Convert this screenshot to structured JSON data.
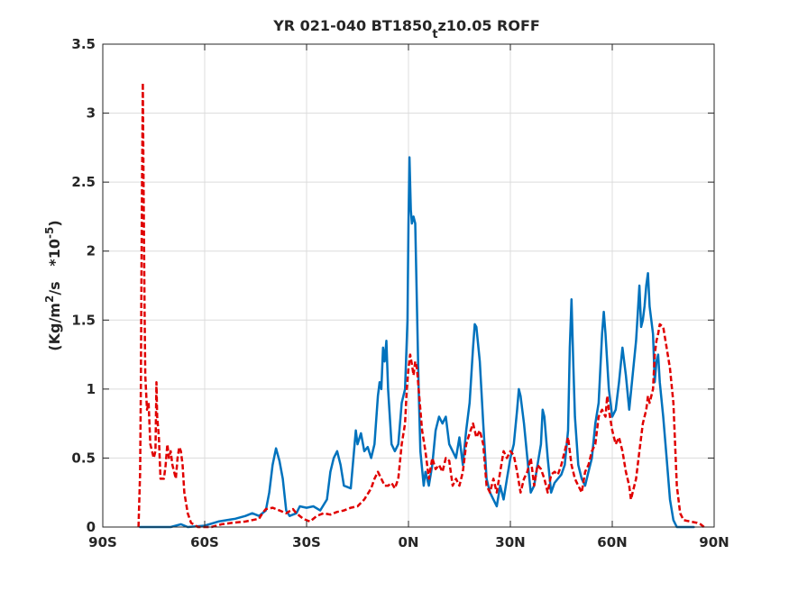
{
  "chart_data": {
    "type": "line",
    "title": {
      "pre": "YR 021-040 BT1850",
      "sub": "t",
      "post": "z10.05 ROFF"
    },
    "ylabel": {
      "a": "(Kg/m",
      "sup1": "2",
      "b": "/s   *10",
      "sup2": "-5",
      "c": ")"
    },
    "xlim": [
      -90,
      90
    ],
    "ylim": [
      0,
      3.5
    ],
    "grid": true,
    "x_ticks": [
      -90,
      -60,
      -30,
      0,
      30,
      60,
      90
    ],
    "x_tick_labels": [
      "90S",
      "60S",
      "30S",
      "0N",
      "30N",
      "60N",
      "90N"
    ],
    "y_ticks": [
      0,
      0.5,
      1,
      1.5,
      2,
      2.5,
      3,
      3.5
    ],
    "y_tick_labels": [
      "0",
      "0.5",
      "1",
      "1.5",
      "2",
      "2.5",
      "3",
      "3.5"
    ],
    "series": [
      {
        "color": "#0072BD",
        "dash": "solid",
        "points": [
          [
            -79,
            0
          ],
          [
            -70,
            0
          ],
          [
            -67,
            0.02
          ],
          [
            -65,
            0
          ],
          [
            -60,
            0.01
          ],
          [
            -56,
            0.04
          ],
          [
            -51,
            0.06
          ],
          [
            -48,
            0.08
          ],
          [
            -46,
            0.1
          ],
          [
            -44,
            0.08
          ],
          [
            -42,
            0.12
          ],
          [
            -41,
            0.25
          ],
          [
            -40,
            0.45
          ],
          [
            -39,
            0.57
          ],
          [
            -38,
            0.48
          ],
          [
            -37,
            0.35
          ],
          [
            -36,
            0.12
          ],
          [
            -35,
            0.08
          ],
          [
            -34,
            0.09
          ],
          [
            -33,
            0.1
          ],
          [
            -32,
            0.15
          ],
          [
            -30,
            0.14
          ],
          [
            -28,
            0.15
          ],
          [
            -26,
            0.12
          ],
          [
            -24,
            0.2
          ],
          [
            -23,
            0.4
          ],
          [
            -22,
            0.5
          ],
          [
            -21,
            0.55
          ],
          [
            -20,
            0.45
          ],
          [
            -19,
            0.3
          ],
          [
            -17,
            0.28
          ],
          [
            -15.5,
            0.7
          ],
          [
            -15,
            0.6
          ],
          [
            -14,
            0.68
          ],
          [
            -13,
            0.55
          ],
          [
            -12,
            0.58
          ],
          [
            -11,
            0.5
          ],
          [
            -10,
            0.6
          ],
          [
            -9,
            0.95
          ],
          [
            -8.5,
            1.05
          ],
          [
            -8,
            1.0
          ],
          [
            -7.5,
            1.3
          ],
          [
            -7,
            1.2
          ],
          [
            -6.5,
            1.35
          ],
          [
            -6,
            1.0
          ],
          [
            -5,
            0.6
          ],
          [
            -4,
            0.55
          ],
          [
            -3,
            0.6
          ],
          [
            -2,
            0.9
          ],
          [
            -1,
            1.0
          ],
          [
            -0.3,
            1.5
          ],
          [
            0,
            2.2
          ],
          [
            0.3,
            2.68
          ],
          [
            0.7,
            2.3
          ],
          [
            1,
            2.2
          ],
          [
            1.5,
            2.25
          ],
          [
            2,
            2.2
          ],
          [
            2.5,
            1.6
          ],
          [
            3,
            1.0
          ],
          [
            3.5,
            0.55
          ],
          [
            4.5,
            0.3
          ],
          [
            5,
            0.4
          ],
          [
            6,
            0.3
          ],
          [
            7,
            0.45
          ],
          [
            8,
            0.7
          ],
          [
            9,
            0.8
          ],
          [
            10,
            0.75
          ],
          [
            11,
            0.8
          ],
          [
            12,
            0.6
          ],
          [
            13,
            0.55
          ],
          [
            14,
            0.5
          ],
          [
            15,
            0.65
          ],
          [
            16,
            0.45
          ],
          [
            17,
            0.7
          ],
          [
            18,
            0.9
          ],
          [
            19,
            1.3
          ],
          [
            19.5,
            1.47
          ],
          [
            20,
            1.45
          ],
          [
            21,
            1.2
          ],
          [
            22,
            0.75
          ],
          [
            23,
            0.35
          ],
          [
            24,
            0.25
          ],
          [
            25,
            0.2
          ],
          [
            26,
            0.15
          ],
          [
            27,
            0.3
          ],
          [
            28,
            0.2
          ],
          [
            29,
            0.35
          ],
          [
            30,
            0.5
          ],
          [
            31,
            0.6
          ],
          [
            32,
            0.85
          ],
          [
            32.5,
            1.0
          ],
          [
            33,
            0.95
          ],
          [
            34,
            0.75
          ],
          [
            35,
            0.5
          ],
          [
            36,
            0.25
          ],
          [
            37,
            0.3
          ],
          [
            38,
            0.45
          ],
          [
            39,
            0.6
          ],
          [
            39.5,
            0.85
          ],
          [
            40,
            0.8
          ],
          [
            41,
            0.5
          ],
          [
            42,
            0.25
          ],
          [
            43,
            0.32
          ],
          [
            44,
            0.35
          ],
          [
            45,
            0.38
          ],
          [
            46,
            0.45
          ],
          [
            47,
            0.7
          ],
          [
            47.5,
            1.3
          ],
          [
            48,
            1.65
          ],
          [
            48.5,
            1.2
          ],
          [
            49,
            0.8
          ],
          [
            50,
            0.45
          ],
          [
            51,
            0.35
          ],
          [
            52,
            0.3
          ],
          [
            53,
            0.4
          ],
          [
            54,
            0.5
          ],
          [
            55,
            0.75
          ],
          [
            56,
            0.9
          ],
          [
            57,
            1.4
          ],
          [
            57.5,
            1.56
          ],
          [
            58,
            1.4
          ],
          [
            59,
            1.0
          ],
          [
            60,
            0.8
          ],
          [
            61,
            0.85
          ],
          [
            62,
            1.05
          ],
          [
            63,
            1.3
          ],
          [
            64,
            1.1
          ],
          [
            65,
            0.85
          ],
          [
            66,
            1.1
          ],
          [
            67,
            1.35
          ],
          [
            67.5,
            1.55
          ],
          [
            68,
            1.75
          ],
          [
            68.5,
            1.45
          ],
          [
            69,
            1.5
          ],
          [
            69.5,
            1.6
          ],
          [
            70,
            1.75
          ],
          [
            70.5,
            1.84
          ],
          [
            71,
            1.6
          ],
          [
            72,
            1.4
          ],
          [
            72.5,
            1.05
          ],
          [
            73,
            1.2
          ],
          [
            73.5,
            1.25
          ],
          [
            74,
            1.05
          ],
          [
            75,
            0.8
          ],
          [
            76,
            0.5
          ],
          [
            77,
            0.2
          ],
          [
            78,
            0.05
          ],
          [
            79,
            0
          ],
          [
            84,
            0
          ]
        ]
      },
      {
        "color": "#E00000",
        "dash": "dashed",
        "points": [
          [
            -79.5,
            0
          ],
          [
            -79,
            0.4
          ],
          [
            -78.8,
            1.0
          ],
          [
            -78.5,
            2.3
          ],
          [
            -78.2,
            3.22
          ],
          [
            -78,
            2.5
          ],
          [
            -77.7,
            1.6
          ],
          [
            -77.5,
            1.1
          ],
          [
            -77,
            0.85
          ],
          [
            -76.5,
            0.9
          ],
          [
            -76,
            0.6
          ],
          [
            -75.5,
            0.55
          ],
          [
            -75,
            0.5
          ],
          [
            -74.5,
            0.55
          ],
          [
            -74.2,
            1.05
          ],
          [
            -74,
            0.8
          ],
          [
            -73.5,
            0.65
          ],
          [
            -73,
            0.35
          ],
          [
            -72,
            0.35
          ],
          [
            -71.5,
            0.45
          ],
          [
            -71,
            0.6
          ],
          [
            -70.5,
            0.5
          ],
          [
            -70,
            0.55
          ],
          [
            -69.5,
            0.45
          ],
          [
            -69,
            0.4
          ],
          [
            -68.5,
            0.35
          ],
          [
            -68,
            0.5
          ],
          [
            -67.5,
            0.58
          ],
          [
            -67,
            0.55
          ],
          [
            -66.5,
            0.45
          ],
          [
            -66,
            0.25
          ],
          [
            -65,
            0.1
          ],
          [
            -64,
            0.03
          ],
          [
            -62,
            0
          ],
          [
            -58,
            0
          ],
          [
            -55,
            0.02
          ],
          [
            -52,
            0.03
          ],
          [
            -48,
            0.04
          ],
          [
            -46,
            0.05
          ],
          [
            -44,
            0.06
          ],
          [
            -43,
            0.1
          ],
          [
            -42,
            0.13
          ],
          [
            -40,
            0.14
          ],
          [
            -38,
            0.12
          ],
          [
            -36,
            0.1
          ],
          [
            -34,
            0.13
          ],
          [
            -33,
            0.1
          ],
          [
            -31,
            0.06
          ],
          [
            -29,
            0.04
          ],
          [
            -27,
            0.08
          ],
          [
            -25,
            0.1
          ],
          [
            -23,
            0.09
          ],
          [
            -21,
            0.11
          ],
          [
            -19,
            0.12
          ],
          [
            -17,
            0.14
          ],
          [
            -15,
            0.15
          ],
          [
            -13,
            0.2
          ],
          [
            -11,
            0.28
          ],
          [
            -10,
            0.35
          ],
          [
            -9,
            0.4
          ],
          [
            -8,
            0.35
          ],
          [
            -7,
            0.3
          ],
          [
            -6,
            0.3
          ],
          [
            -5,
            0.32
          ],
          [
            -4,
            0.28
          ],
          [
            -3,
            0.35
          ],
          [
            -2,
            0.6
          ],
          [
            -1,
            0.75
          ],
          [
            -0.5,
            1.0
          ],
          [
            0,
            1.15
          ],
          [
            0.5,
            1.25
          ],
          [
            1,
            1.18
          ],
          [
            1.5,
            1.1
          ],
          [
            2,
            1.2
          ],
          [
            2.5,
            1.15
          ],
          [
            3,
            1.0
          ],
          [
            4,
            0.7
          ],
          [
            5,
            0.55
          ],
          [
            6,
            0.35
          ],
          [
            7,
            0.5
          ],
          [
            8,
            0.42
          ],
          [
            9,
            0.45
          ],
          [
            10,
            0.4
          ],
          [
            11,
            0.5
          ],
          [
            12,
            0.48
          ],
          [
            13,
            0.3
          ],
          [
            14,
            0.35
          ],
          [
            15,
            0.3
          ],
          [
            16,
            0.4
          ],
          [
            17,
            0.6
          ],
          [
            18,
            0.68
          ],
          [
            19,
            0.75
          ],
          [
            20,
            0.65
          ],
          [
            21,
            0.7
          ],
          [
            22,
            0.6
          ],
          [
            23,
            0.3
          ],
          [
            24,
            0.25
          ],
          [
            25,
            0.35
          ],
          [
            26,
            0.25
          ],
          [
            27,
            0.4
          ],
          [
            28,
            0.55
          ],
          [
            29,
            0.5
          ],
          [
            30,
            0.55
          ],
          [
            31,
            0.52
          ],
          [
            32,
            0.4
          ],
          [
            33,
            0.25
          ],
          [
            34,
            0.35
          ],
          [
            35,
            0.4
          ],
          [
            36,
            0.5
          ],
          [
            37,
            0.3
          ],
          [
            38,
            0.45
          ],
          [
            39,
            0.42
          ],
          [
            40,
            0.35
          ],
          [
            41,
            0.25
          ],
          [
            42,
            0.38
          ],
          [
            43,
            0.4
          ],
          [
            44,
            0.38
          ],
          [
            45,
            0.45
          ],
          [
            46,
            0.55
          ],
          [
            47,
            0.65
          ],
          [
            47.5,
            0.55
          ],
          [
            48,
            0.45
          ],
          [
            49,
            0.35
          ],
          [
            50,
            0.3
          ],
          [
            51,
            0.25
          ],
          [
            52,
            0.4
          ],
          [
            53,
            0.45
          ],
          [
            54,
            0.55
          ],
          [
            55,
            0.6
          ],
          [
            56,
            0.8
          ],
          [
            57,
            0.85
          ],
          [
            58,
            0.8
          ],
          [
            58.5,
            0.95
          ],
          [
            59,
            0.85
          ],
          [
            60,
            0.7
          ],
          [
            61,
            0.6
          ],
          [
            62,
            0.65
          ],
          [
            63,
            0.55
          ],
          [
            64,
            0.4
          ],
          [
            65,
            0.3
          ],
          [
            65.5,
            0.2
          ],
          [
            66,
            0.25
          ],
          [
            67,
            0.35
          ],
          [
            68,
            0.55
          ],
          [
            69,
            0.75
          ],
          [
            70,
            0.85
          ],
          [
            70.5,
            0.95
          ],
          [
            71,
            0.9
          ],
          [
            72,
            1.0
          ],
          [
            72.5,
            1.25
          ],
          [
            73,
            1.35
          ],
          [
            73.5,
            1.4
          ],
          [
            74,
            1.47
          ],
          [
            75,
            1.45
          ],
          [
            76,
            1.3
          ],
          [
            77,
            1.15
          ],
          [
            78,
            0.9
          ],
          [
            78.5,
            0.6
          ],
          [
            79,
            0.3
          ],
          [
            80,
            0.1
          ],
          [
            81,
            0.05
          ],
          [
            83,
            0.04
          ],
          [
            85,
            0.03
          ],
          [
            86,
            0.02
          ],
          [
            87,
            0
          ]
        ]
      }
    ]
  }
}
